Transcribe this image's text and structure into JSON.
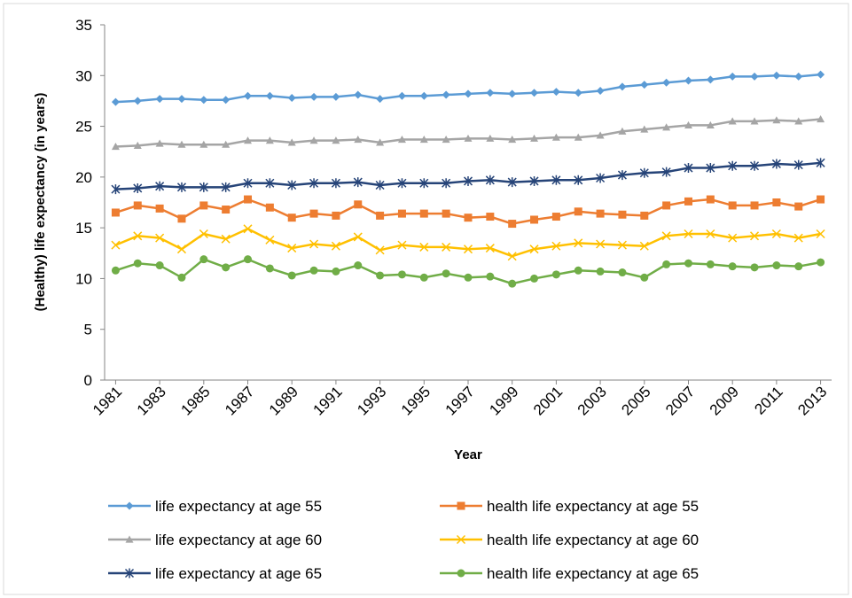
{
  "chart_data": {
    "type": "line",
    "y_label": "(Healthy) life expectancy (in years)",
    "x_label": "Year",
    "x": [
      1981,
      1982,
      1983,
      1984,
      1985,
      1986,
      1987,
      1988,
      1989,
      1990,
      1991,
      1992,
      1993,
      1994,
      1995,
      1996,
      1997,
      1998,
      1999,
      2000,
      2001,
      2002,
      2003,
      2004,
      2005,
      2006,
      2007,
      2008,
      2009,
      2010,
      2011,
      2012,
      2013
    ],
    "xlim": [
      1980.5,
      2013.5
    ],
    "xticks": [
      1981,
      1983,
      1985,
      1987,
      1989,
      1991,
      1993,
      1995,
      1997,
      1999,
      2001,
      2003,
      2005,
      2007,
      2009,
      2011,
      2013
    ],
    "ylim": [
      0,
      35
    ],
    "yticks": [
      0,
      5,
      10,
      15,
      20,
      25,
      30,
      35
    ],
    "grid": false,
    "legend": "bottom",
    "series": [
      {
        "name": "life expectancy at age 55",
        "color": "#5b9bd5",
        "marker": "diamond",
        "values": [
          27.4,
          27.5,
          27.7,
          27.7,
          27.6,
          27.6,
          28.0,
          28.0,
          27.8,
          27.9,
          27.9,
          28.1,
          27.7,
          28.0,
          28.0,
          28.1,
          28.2,
          28.3,
          28.2,
          28.3,
          28.4,
          28.3,
          28.5,
          28.9,
          29.1,
          29.3,
          29.5,
          29.6,
          29.9,
          29.9,
          30.0,
          29.9,
          30.1
        ]
      },
      {
        "name": "health life expectancy at age 55",
        "color": "#ed7d31",
        "marker": "square",
        "values": [
          16.5,
          17.2,
          16.9,
          15.9,
          17.2,
          16.8,
          17.8,
          17.0,
          16.0,
          16.4,
          16.2,
          17.3,
          16.2,
          16.4,
          16.4,
          16.4,
          16.0,
          16.1,
          15.4,
          15.8,
          16.1,
          16.6,
          16.4,
          16.3,
          16.2,
          17.2,
          17.6,
          17.8,
          17.2,
          17.2,
          17.5,
          17.1,
          17.8
        ]
      },
      {
        "name": "life expectancy at age 60",
        "color": "#a5a5a5",
        "marker": "triangle",
        "values": [
          23.0,
          23.1,
          23.3,
          23.2,
          23.2,
          23.2,
          23.6,
          23.6,
          23.4,
          23.6,
          23.6,
          23.7,
          23.4,
          23.7,
          23.7,
          23.7,
          23.8,
          23.8,
          23.7,
          23.8,
          23.9,
          23.9,
          24.1,
          24.5,
          24.7,
          24.9,
          25.1,
          25.1,
          25.5,
          25.5,
          25.6,
          25.5,
          25.7
        ]
      },
      {
        "name": "health life expectancy at age 60",
        "color": "#ffc000",
        "marker": "x",
        "values": [
          13.3,
          14.2,
          14.0,
          12.9,
          14.4,
          13.9,
          14.9,
          13.8,
          13.0,
          13.4,
          13.2,
          14.1,
          12.8,
          13.3,
          13.1,
          13.1,
          12.9,
          13.0,
          12.2,
          12.9,
          13.2,
          13.5,
          13.4,
          13.3,
          13.2,
          14.2,
          14.4,
          14.4,
          14.0,
          14.2,
          14.4,
          14.0,
          14.4
        ]
      },
      {
        "name": "life expectancy at age 65",
        "color": "#264478",
        "marker": "star",
        "values": [
          18.8,
          18.9,
          19.1,
          19.0,
          19.0,
          19.0,
          19.4,
          19.4,
          19.2,
          19.4,
          19.4,
          19.5,
          19.2,
          19.4,
          19.4,
          19.4,
          19.6,
          19.7,
          19.5,
          19.6,
          19.7,
          19.7,
          19.9,
          20.2,
          20.4,
          20.5,
          20.9,
          20.9,
          21.1,
          21.1,
          21.3,
          21.2,
          21.4
        ]
      },
      {
        "name": "health life expectancy at age 65",
        "color": "#70ad47",
        "marker": "circle",
        "values": [
          10.8,
          11.5,
          11.3,
          10.1,
          11.9,
          11.1,
          11.9,
          11.0,
          10.3,
          10.8,
          10.7,
          11.3,
          10.3,
          10.4,
          10.1,
          10.5,
          10.1,
          10.2,
          9.5,
          10.0,
          10.4,
          10.8,
          10.7,
          10.6,
          10.1,
          11.4,
          11.5,
          11.4,
          11.2,
          11.1,
          11.3,
          11.2,
          11.6
        ]
      }
    ]
  }
}
